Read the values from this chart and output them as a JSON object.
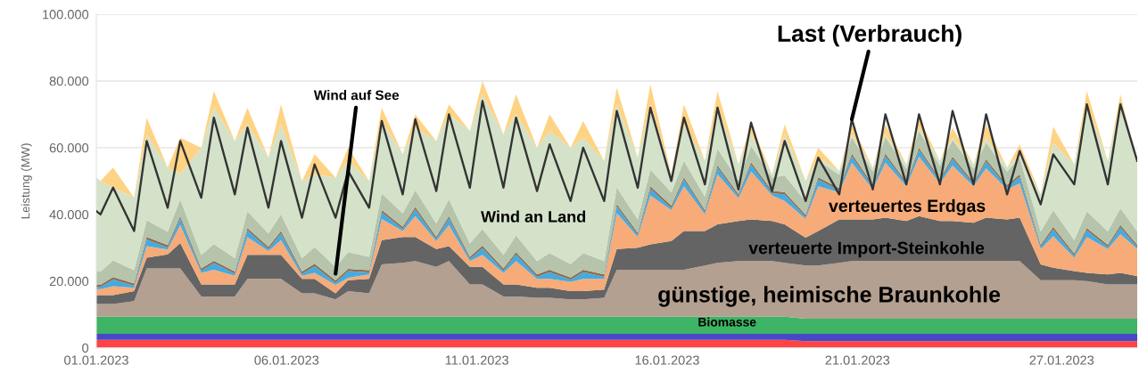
{
  "chart_data": {
    "type": "area",
    "stacked": true,
    "ylabel": "Leistung (MW)",
    "x": [
      "2023-01-01T00:00",
      "2023-01-01T03:00",
      "2023-01-01T12:00",
      "2023-01-02T03:00",
      "2023-01-02T12:00",
      "2023-01-03T03:00",
      "2023-01-03T12:00",
      "2023-01-04T03:00",
      "2023-01-04T12:00",
      "2023-01-05T03:00",
      "2023-01-05T12:00",
      "2023-01-06T03:00",
      "2023-01-06T12:00",
      "2023-01-07T03:00",
      "2023-01-07T12:00",
      "2023-01-08T03:00",
      "2023-01-08T12:00",
      "2023-01-09T03:00",
      "2023-01-09T12:00",
      "2023-01-10T03:00",
      "2023-01-10T12:00",
      "2023-01-11T03:00",
      "2023-01-11T12:00",
      "2023-01-12T03:00",
      "2023-01-12T12:00",
      "2023-01-13T03:00",
      "2023-01-13T12:00",
      "2023-01-14T03:00",
      "2023-01-14T12:00",
      "2023-01-15T03:00",
      "2023-01-15T12:00",
      "2023-01-16T03:00",
      "2023-01-16T12:00",
      "2023-01-17T03:00",
      "2023-01-17T12:00",
      "2023-01-18T03:00",
      "2023-01-18T12:00",
      "2023-01-19T03:00",
      "2023-01-19T12:00",
      "2023-01-20T03:00",
      "2023-01-20T12:00",
      "2023-01-21T03:00",
      "2023-01-21T12:00",
      "2023-01-22T03:00",
      "2023-01-22T12:00",
      "2023-01-23T03:00",
      "2023-01-23T12:00",
      "2023-01-24T03:00",
      "2023-01-24T12:00",
      "2023-01-25T03:00",
      "2023-01-25T12:00",
      "2023-01-26T03:00",
      "2023-01-26T12:00",
      "2023-01-27T03:00",
      "2023-01-27T12:00",
      "2023-01-28T03:00",
      "2023-01-28T12:00",
      "2023-01-29T03:00",
      "2023-01-29T12:00",
      "2023-01-30T03:00",
      "2023-01-30T12:00",
      "2023-01-31T03:00",
      "2023-01-31T12:00",
      "2023-02-01T00:00"
    ],
    "xlim": [
      "2023-01-01T00:00",
      "2023-02-01T00:00"
    ],
    "xticks": [
      {
        "value": "2023-01-01T00:00",
        "label": "01.01.2023"
      },
      {
        "value": "2023-01-06T16:00",
        "label": "06.01.2023"
      },
      {
        "value": "2023-01-12T08:00",
        "label": "11.01.2023"
      },
      {
        "value": "2023-01-18T00:00",
        "label": "16.01.2023"
      },
      {
        "value": "2023-01-23T16:00",
        "label": "21.01.2023"
      },
      {
        "value": "2023-01-29T18:00",
        "label": "27.01.2023"
      }
    ],
    "ylim": [
      0,
      100000
    ],
    "yticks": [
      0,
      {
        "value": 20000,
        "label": "20.000"
      },
      {
        "value": 40000,
        "label": "40.000"
      },
      {
        "value": 60000,
        "label": "60.000"
      },
      {
        "value": 80000,
        "label": "80.000"
      },
      {
        "value": 100000,
        "label": "100.000"
      }
    ],
    "grid": "y",
    "series": [
      {
        "color": "#ff4444",
        "values": [
          2400,
          2400,
          2400,
          2400,
          2400,
          2400,
          2400,
          2400,
          2400,
          2400,
          2400,
          2400,
          2400,
          2400,
          2400,
          2400,
          2400,
          2400,
          2400,
          2400,
          2400,
          2400,
          2400,
          2400,
          2400,
          2400,
          2400,
          2400,
          2400,
          2400,
          2400,
          2400,
          2400,
          2400,
          2400,
          2400,
          2400,
          2400,
          2400,
          2400,
          2400,
          2400,
          2400,
          2000,
          2000,
          2000,
          2000,
          2000,
          2000,
          2000,
          2000,
          2000,
          2000,
          2000,
          2000,
          2000,
          2000,
          2000,
          2000,
          2000,
          2000,
          2000,
          2000,
          2000
        ]
      },
      {
        "color": "#4848c8",
        "values": [
          1800,
          1800,
          1800,
          1800,
          1800,
          1800,
          1800,
          1800,
          1800,
          1800,
          1800,
          1800,
          1800,
          1800,
          1800,
          1800,
          1800,
          1800,
          1800,
          1800,
          1800,
          1800,
          1800,
          1800,
          1800,
          1800,
          1800,
          1800,
          1800,
          1800,
          1800,
          1800,
          1800,
          1800,
          1800,
          1800,
          1800,
          1800,
          1800,
          1800,
          1800,
          1800,
          1800,
          2200,
          2200,
          2200,
          2200,
          2200,
          2200,
          2200,
          2200,
          2200,
          2200,
          2200,
          2200,
          2200,
          2200,
          2200,
          2200,
          2200,
          2200,
          2200,
          2200,
          2200
        ]
      },
      {
        "name": "Biomasse",
        "color": "#3db466",
        "values": [
          5100,
          5100,
          5100,
          5100,
          5100,
          5100,
          5100,
          5100,
          5100,
          5100,
          5100,
          5100,
          5100,
          5100,
          5100,
          5100,
          5100,
          5100,
          5100,
          5100,
          5100,
          5100,
          5100,
          5100,
          5100,
          5100,
          5100,
          5100,
          5100,
          5100,
          5100,
          5100,
          5100,
          5100,
          5100,
          5100,
          5100,
          5100,
          5100,
          5100,
          5100,
          5100,
          5100,
          4500,
          4500,
          4500,
          4500,
          4500,
          4500,
          4500,
          4500,
          4500,
          4500,
          4500,
          4500,
          4500,
          4500,
          4500,
          4500,
          4500,
          4500,
          4500,
          4500,
          4500
        ]
      },
      {
        "name": "günstige, heimische Braunkohle",
        "color": "#b3a091",
        "values": [
          3800,
          3800,
          3800,
          4700,
          14500,
          14500,
          14500,
          6100,
          6100,
          6100,
          11400,
          11400,
          11400,
          7000,
          7000,
          5200,
          7700,
          7000,
          15700,
          16200,
          16700,
          15000,
          16700,
          9700,
          9700,
          6100,
          6100,
          5700,
          5700,
          5200,
          5200,
          5700,
          14100,
          14100,
          14100,
          14100,
          14100,
          15400,
          16200,
          16700,
          16700,
          16700,
          16200,
          16000,
          16000,
          16800,
          17300,
          17300,
          17300,
          17300,
          17300,
          17300,
          17300,
          17300,
          17300,
          17300,
          17300,
          11600,
          11600,
          11600,
          11300,
          10300,
          10300,
          10300
        ]
      },
      {
        "name": "verteuerte Import-Steinkohle",
        "color": "#646464",
        "values": [
          2700,
          2700,
          2700,
          3000,
          3200,
          4200,
          7600,
          3600,
          3600,
          3600,
          7200,
          7200,
          7200,
          4400,
          4400,
          1800,
          3300,
          4400,
          7300,
          7700,
          7200,
          5300,
          4500,
          5300,
          5300,
          3600,
          3600,
          3000,
          3000,
          2500,
          2500,
          2500,
          6200,
          6600,
          7600,
          8600,
          11600,
          10300,
          11500,
          12000,
          12500,
          12000,
          11500,
          8300,
          10300,
          13000,
          12500,
          12500,
          13000,
          12000,
          13500,
          12000,
          12000,
          11500,
          13000,
          12500,
          13000,
          4700,
          3700,
          2700,
          2500,
          3000,
          3500,
          2500
        ]
      },
      {
        "name": "verteuertes Erdgas",
        "color": "#f6ab78",
        "values": [
          1800,
          1800,
          2700,
          1000,
          3500,
          1500,
          5400,
          3500,
          4400,
          2600,
          5300,
          1100,
          4400,
          900,
          1800,
          2600,
          700,
          1300,
          6300,
          1800,
          6300,
          2400,
          6300,
          1700,
          3600,
          3500,
          7000,
          2700,
          2700,
          2800,
          3700,
          3200,
          10800,
          3200,
          14700,
          9300,
          13400,
          5000,
          15000,
          6800,
          14400,
          7700,
          7000,
          5600,
          13400,
          8100,
          17000,
          9000,
          16500,
          10400,
          17800,
          11300,
          16600,
          10900,
          14800,
          9000,
          10300,
          4600,
          9500,
          4000,
          10700,
          7600,
          11600,
          8100
        ]
      },
      {
        "color": "#46aadf",
        "values": [
          600,
          600,
          2000,
          600,
          2000,
          600,
          2000,
          600,
          2000,
          600,
          2000,
          600,
          2000,
          600,
          2000,
          600,
          2000,
          600,
          2000,
          600,
          2000,
          600,
          2000,
          600,
          2000,
          600,
          2000,
          600,
          2000,
          600,
          2000,
          600,
          2000,
          600,
          2000,
          600,
          2000,
          600,
          2000,
          600,
          2000,
          600,
          2000,
          600,
          2000,
          600,
          2000,
          600,
          2000,
          600,
          2000,
          600,
          2000,
          600,
          2000,
          600,
          2000,
          600,
          2000,
          600,
          2000,
          600,
          2000,
          600
        ]
      },
      {
        "color": "#8c6e50",
        "values": [
          700,
          700,
          700,
          700,
          700,
          700,
          700,
          700,
          700,
          700,
          700,
          700,
          700,
          700,
          700,
          700,
          700,
          700,
          700,
          700,
          700,
          700,
          700,
          700,
          700,
          700,
          700,
          700,
          700,
          700,
          700,
          700,
          700,
          700,
          700,
          700,
          700,
          700,
          700,
          700,
          700,
          700,
          700,
          700,
          700,
          700,
          700,
          700,
          700,
          700,
          700,
          700,
          700,
          700,
          700,
          700,
          700,
          700,
          700,
          700,
          700,
          700,
          700,
          700
        ]
      },
      {
        "name": "Wind auf See",
        "color": "#b5c4ab",
        "values": [
          4000,
          4000,
          5000,
          4000,
          5000,
          4000,
          5000,
          4000,
          5000,
          4000,
          5000,
          4000,
          5000,
          4000,
          5000,
          4000,
          5000,
          4000,
          5000,
          4000,
          5000,
          4000,
          5000,
          4000,
          5000,
          4000,
          5000,
          4000,
          5000,
          4000,
          5000,
          4000,
          5000,
          4000,
          5000,
          4000,
          5000,
          4000,
          5000,
          4000,
          5000,
          4000,
          5000,
          4000,
          5000,
          4000,
          5000,
          4000,
          5000,
          4000,
          5000,
          4000,
          5000,
          4000,
          5000,
          4000,
          5000,
          4000,
          5000,
          4000,
          5000,
          4000,
          5000,
          4000
        ]
      },
      {
        "name": "Wind an Land",
        "color": "#d3e2c9",
        "values": [
          28100,
          27100,
          21800,
          21700,
          25800,
          19200,
          7500,
          32200,
          40900,
          35100,
          26100,
          22700,
          27000,
          23100,
          21800,
          26800,
          27300,
          22700,
          21700,
          17700,
          18800,
          24700,
          25500,
          33700,
          40400,
          36200,
          36300,
          34000,
          36600,
          34900,
          34600,
          30000,
          24900,
          18500,
          19600,
          5400,
          10900,
          10700,
          12300,
          4900,
          3400,
          1000,
          12300,
          6100,
          900,
          1100,
          800,
          1200,
          800,
          1300,
          1000,
          1400,
          700,
          1300,
          1500,
          1200,
          1000,
          11100,
          20100,
          22700,
          32100,
          21100,
          31200,
          20100
        ]
      },
      {
        "color": "#ffd384",
        "values": [
          0,
          0,
          6000,
          0,
          5000,
          0,
          11000,
          0,
          5000,
          0,
          5000,
          0,
          6000,
          0,
          6000,
          0,
          4000,
          0,
          4000,
          0,
          4000,
          0,
          3000,
          0,
          4000,
          0,
          6000,
          0,
          5000,
          0,
          5000,
          0,
          5000,
          0,
          6000,
          0,
          6000,
          0,
          5000,
          0,
          3000,
          0,
          3000,
          0,
          3000,
          0,
          3000,
          0,
          3000,
          0,
          3000,
          0,
          3000,
          0,
          4000,
          0,
          3000,
          0,
          5000,
          0,
          4000,
          0,
          3000,
          0
        ]
      },
      {
        "name": "Last (Verbrauch)",
        "type": "line",
        "line_style": "solid",
        "color": "#333333",
        "values": [
          41000,
          40000,
          48000,
          35000,
          62000,
          42000,
          62000,
          45000,
          69000,
          46000,
          66000,
          42000,
          62000,
          39000,
          55000,
          39000,
          53000,
          42000,
          68000,
          46000,
          68500,
          47000,
          70000,
          48000,
          74000,
          48000,
          69000,
          47000,
          61000,
          44000,
          60000,
          44000,
          71000,
          48000,
          72000,
          50000,
          69000,
          49000,
          72000,
          47500,
          67500,
          47000,
          62000,
          44000,
          57000,
          46000,
          68500,
          47500,
          70000,
          49000,
          70000,
          49000,
          71000,
          49000,
          70000,
          46000,
          59000,
          43000,
          58000,
          49000,
          73000,
          49000,
          73000,
          56000
        ]
      }
    ]
  }
}
